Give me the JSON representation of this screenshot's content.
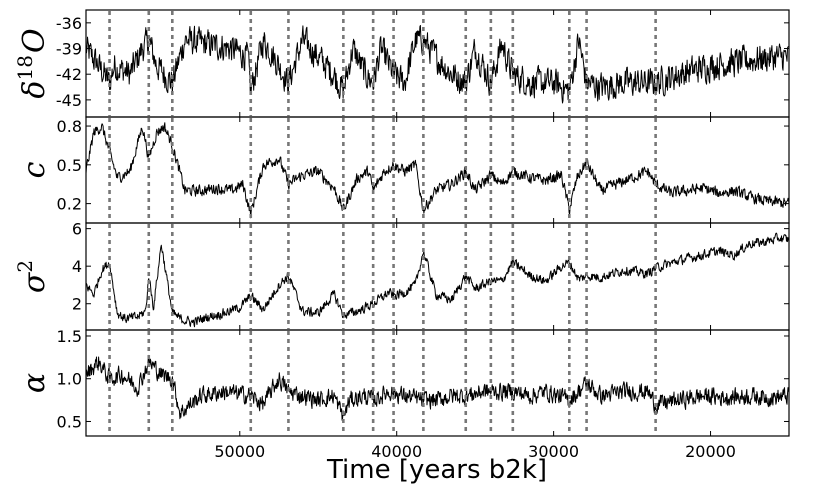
{
  "chart_data": {
    "type": "line",
    "xlabel": "Time [years b2k]",
    "x_reversed": true,
    "xlim": [
      59800,
      15000
    ],
    "x_ticks": [
      50000,
      40000,
      30000,
      20000
    ],
    "x_tick_labels": [
      "50000",
      "40000",
      "30000",
      "20000"
    ],
    "event_lines_x": [
      58300,
      55800,
      54300,
      49300,
      46900,
      43400,
      41500,
      40200,
      38300,
      35600,
      34000,
      32600,
      29000,
      27900,
      23500
    ],
    "panels": [
      {
        "id": "d18O",
        "ylabel_main": "δ",
        "ylabel_sup": "18",
        "ylabel_tail": "O",
        "ylim": [
          -47,
          -34.5
        ],
        "y_ticks": [
          -36,
          -39,
          -42,
          -45
        ],
        "y_tick_labels": [
          "-36",
          "-39",
          "-42",
          "-45"
        ],
        "series": [
          {
            "x": [
              59800,
              59000,
              58300,
              58000,
              57000,
              56200,
              55800,
              55300,
              54300,
              53500,
              52000,
              50500,
              49500,
              49300,
              48500,
              47500,
              46900,
              46000,
              45000,
              44000,
              43400,
              42800,
              42000,
              41500,
              41000,
              40200,
              39500,
              38800,
              38300,
              37500,
              36500,
              35600,
              35000,
              34000,
              33300,
              32600,
              31500,
              30000,
              29000,
              28400,
              27900,
              27000,
              25500,
              24000,
              23500,
              22000,
              20000,
              18000,
              16000,
              15000
            ],
            "y": [
              -39,
              -41,
              -43,
              -41,
              -42,
              -39,
              -38,
              -41,
              -43,
              -38,
              -38.5,
              -39,
              -40,
              -44,
              -38,
              -41,
              -43,
              -38,
              -40,
              -42,
              -44,
              -39,
              -42,
              -43,
              -39,
              -42,
              -43,
              -38,
              -38,
              -40,
              -42,
              -43,
              -39,
              -43,
              -38.5,
              -42,
              -43,
              -43,
              -44,
              -38,
              -43,
              -43.5,
              -43,
              -43,
              -43,
              -42,
              -41,
              -40.5,
              -40,
              -40
            ],
            "noise": 2.3
          }
        ]
      },
      {
        "id": "c",
        "ylabel_main": "c",
        "ylim": [
          0.05,
          0.87
        ],
        "y_ticks": [
          0.8,
          0.5,
          0.2
        ],
        "y_tick_labels": [
          "0.8",
          "0.5",
          "0.2"
        ],
        "series": [
          {
            "x": [
              59800,
              59300,
              58800,
              58300,
              57800,
              57000,
              56200,
              55800,
              55300,
              54800,
              54300,
              53500,
              52500,
              51500,
              50500,
              49800,
              49300,
              48500,
              47500,
              46900,
              46000,
              45000,
              44000,
              43400,
              42500,
              41800,
              41500,
              40800,
              40200,
              39500,
              38800,
              38300,
              37500,
              36500,
              35600,
              35000,
              34000,
              33300,
              32600,
              31500,
              30500,
              29500,
              29000,
              28500,
              27900,
              27000,
              26000,
              25000,
              24000,
              23500,
              22500,
              21500,
              20500,
              19500,
              18500,
              17500,
              16500,
              15000
            ],
            "y": [
              0.45,
              0.75,
              0.8,
              0.6,
              0.4,
              0.45,
              0.8,
              0.55,
              0.75,
              0.8,
              0.65,
              0.3,
              0.3,
              0.32,
              0.3,
              0.35,
              0.12,
              0.5,
              0.55,
              0.35,
              0.42,
              0.45,
              0.32,
              0.15,
              0.4,
              0.45,
              0.3,
              0.45,
              0.5,
              0.45,
              0.5,
              0.15,
              0.3,
              0.35,
              0.45,
              0.3,
              0.42,
              0.35,
              0.45,
              0.4,
              0.38,
              0.42,
              0.15,
              0.4,
              0.52,
              0.3,
              0.35,
              0.4,
              0.45,
              0.35,
              0.28,
              0.3,
              0.32,
              0.28,
              0.3,
              0.25,
              0.22,
              0.2
            ],
            "noise": 0.06
          }
        ]
      },
      {
        "id": "sigma2",
        "ylabel_main": "σ",
        "ylabel_sup": "2",
        "ylim": [
          0.6,
          6.3
        ],
        "y_ticks": [
          6,
          4,
          2
        ],
        "y_tick_labels": [
          "6",
          "4",
          "2"
        ],
        "series": [
          {
            "x": [
              59800,
              59300,
              58800,
              58300,
              57800,
              57300,
              56500,
              56000,
              55800,
              55500,
              55000,
              54300,
              53800,
              53000,
              52000,
              51000,
              50000,
              49300,
              48500,
              47500,
              46900,
              46000,
              45000,
              44000,
              43400,
              42500,
              41500,
              40500,
              40200,
              39500,
              38800,
              38300,
              37500,
              36500,
              35600,
              35000,
              34000,
              33300,
              32600,
              31500,
              30500,
              29500,
              29000,
              28400,
              27900,
              27000,
              25500,
              24000,
              23500,
              22000,
              20500,
              19500,
              18500,
              17500,
              16500,
              15600,
              15000
            ],
            "y": [
              3,
              2.5,
              3.8,
              4.2,
              1.5,
              1.2,
              1.3,
              1.6,
              3.5,
              1.8,
              5.2,
              1.5,
              1.2,
              1.0,
              1.3,
              1.5,
              1.8,
              2.4,
              1.7,
              3,
              3.5,
              1.6,
              1.5,
              2.5,
              1.4,
              1.6,
              2,
              2.6,
              2.4,
              2.6,
              3,
              4.8,
              2.5,
              2.2,
              3.5,
              2.8,
              3.2,
              3.2,
              4.2,
              3.5,
              3.2,
              4,
              4.2,
              3.3,
              3.5,
              3.4,
              3.8,
              3.6,
              3.9,
              4.3,
              4.6,
              4.8,
              4.6,
              5.2,
              5.3,
              5.5,
              5.4
            ],
            "noise": 0.35
          }
        ]
      },
      {
        "id": "alpha",
        "ylabel_main": "α",
        "ylim": [
          0.33,
          1.57
        ],
        "y_ticks": [
          1.5,
          1.0,
          0.5
        ],
        "y_tick_labels": [
          "1.5",
          "1.0",
          "0.5"
        ],
        "series": [
          {
            "x": [
              59800,
              59000,
              58300,
              57500,
              56500,
              55800,
              55000,
              54300,
              53800,
              52500,
              51000,
              49300,
              48500,
              47500,
              46900,
              46000,
              45000,
              44000,
              43400,
              43000,
              42000,
              41500,
              40500,
              39500,
              38300,
              37500,
              36500,
              35600,
              34500,
              33500,
              32600,
              31500,
              30500,
              29000,
              28400,
              27900,
              27000,
              25500,
              24000,
              23500,
              22000,
              20500,
              19000,
              17500,
              16000,
              15000
            ],
            "y": [
              1.05,
              1.2,
              1.0,
              1.05,
              0.9,
              1.2,
              1.05,
              1.0,
              0.6,
              0.8,
              0.85,
              0.8,
              0.7,
              1.0,
              0.85,
              0.8,
              0.75,
              0.8,
              0.55,
              0.75,
              0.8,
              0.75,
              0.85,
              0.8,
              0.75,
              0.75,
              0.8,
              0.8,
              0.85,
              0.85,
              0.85,
              0.8,
              0.85,
              0.75,
              0.85,
              0.95,
              0.8,
              0.85,
              0.85,
              0.7,
              0.75,
              0.8,
              0.78,
              0.8,
              0.78,
              0.8
            ],
            "noise": 0.14
          }
        ]
      }
    ]
  }
}
